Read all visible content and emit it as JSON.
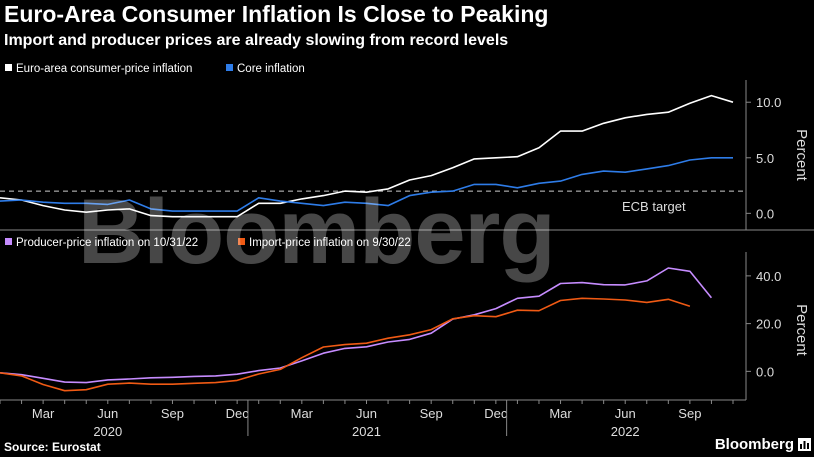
{
  "header": {
    "title": "Euro-Area Consumer Inflation Is Close to Peaking",
    "subtitle": "Import and producer prices are already slowing from record levels"
  },
  "watermark": "Bloomberg",
  "footer": {
    "source": "Source: Eurostat",
    "brand": "Bloomberg",
    "brand_icon": "bar-chart-logo-icon"
  },
  "colors": {
    "background": "#000000",
    "consumer": "#ffffff",
    "core": "#2e7ce8",
    "producer": "#c68cff",
    "import": "#f05a14",
    "grid": "#6a6a6a",
    "target_line": "#cccccc"
  },
  "chart_data": [
    {
      "type": "line",
      "ylabel": "Percent",
      "ylim": [
        -1.5,
        12
      ],
      "yticks": [
        0,
        5,
        10
      ],
      "ytick_labels": [
        "0.0",
        "5.0",
        "10.0"
      ],
      "grid": false,
      "legend_position": "top-left",
      "reference_line": {
        "value": 2,
        "label": "ECB target"
      },
      "x": [
        "2020-01",
        "2020-02",
        "2020-03",
        "2020-04",
        "2020-05",
        "2020-06",
        "2020-07",
        "2020-08",
        "2020-09",
        "2020-10",
        "2020-11",
        "2020-12",
        "2021-01",
        "2021-02",
        "2021-03",
        "2021-04",
        "2021-05",
        "2021-06",
        "2021-07",
        "2021-08",
        "2021-09",
        "2021-10",
        "2021-11",
        "2021-12",
        "2022-01",
        "2022-02",
        "2022-03",
        "2022-04",
        "2022-05",
        "2022-06",
        "2022-07",
        "2022-08",
        "2022-09",
        "2022-10",
        "2022-11"
      ],
      "series": [
        {
          "name": "Euro-area consumer-price inflation",
          "color": "#ffffff",
          "values": [
            1.4,
            1.2,
            0.7,
            0.3,
            0.1,
            0.3,
            0.4,
            -0.2,
            -0.3,
            -0.3,
            -0.3,
            -0.3,
            0.9,
            0.9,
            1.3,
            1.6,
            2.0,
            1.9,
            2.2,
            3.0,
            3.4,
            4.1,
            4.9,
            5.0,
            5.1,
            5.9,
            7.4,
            7.4,
            8.1,
            8.6,
            8.9,
            9.1,
            9.9,
            10.6,
            10.0
          ]
        },
        {
          "name": "Core inflation",
          "color": "#2e7ce8",
          "values": [
            1.1,
            1.2,
            1.0,
            0.9,
            0.9,
            0.8,
            1.2,
            0.4,
            0.2,
            0.2,
            0.2,
            0.2,
            1.4,
            1.1,
            0.9,
            0.7,
            1.0,
            0.9,
            0.7,
            1.6,
            1.9,
            2.0,
            2.6,
            2.6,
            2.3,
            2.7,
            2.9,
            3.5,
            3.8,
            3.7,
            4.0,
            4.3,
            4.8,
            5.0,
            5.0
          ]
        }
      ]
    },
    {
      "type": "line",
      "ylabel": "Percent",
      "ylim": [
        -12,
        50
      ],
      "yticks": [
        0,
        20,
        40
      ],
      "ytick_labels": [
        "0.0",
        "20.0",
        "40.0"
      ],
      "grid": false,
      "legend_position": "top-left",
      "x": [
        "2020-01",
        "2020-02",
        "2020-03",
        "2020-04",
        "2020-05",
        "2020-06",
        "2020-07",
        "2020-08",
        "2020-09",
        "2020-10",
        "2020-11",
        "2020-12",
        "2021-01",
        "2021-02",
        "2021-03",
        "2021-04",
        "2021-05",
        "2021-06",
        "2021-07",
        "2021-08",
        "2021-09",
        "2021-10",
        "2021-11",
        "2021-12",
        "2022-01",
        "2022-02",
        "2022-03",
        "2022-04",
        "2022-05",
        "2022-06",
        "2022-07",
        "2022-08",
        "2022-09",
        "2022-10",
        "2022-11"
      ],
      "series": [
        {
          "name": "Producer-price inflation on 10/31/22",
          "color": "#c68cff",
          "values": [
            -0.6,
            -1.4,
            -2.9,
            -4.5,
            -4.7,
            -3.6,
            -3.2,
            -2.7,
            -2.5,
            -2.1,
            -1.9,
            -1.2,
            0.3,
            1.4,
            4.4,
            7.6,
            9.6,
            10.3,
            12.3,
            13.4,
            16.0,
            21.9,
            23.7,
            26.3,
            30.6,
            31.5,
            36.8,
            37.2,
            36.3,
            36.2,
            37.9,
            43.3,
            41.9,
            30.8,
            null
          ]
        },
        {
          "name": "Import-price inflation on 9/30/22",
          "color": "#f05a14",
          "values": [
            -0.6,
            -1.9,
            -5.5,
            -8.1,
            -7.7,
            -5.4,
            -4.9,
            -5.4,
            -5.4,
            -5.0,
            -4.7,
            -3.8,
            -1.1,
            0.8,
            5.7,
            10.2,
            11.2,
            11.8,
            13.9,
            15.3,
            17.5,
            22.0,
            23.3,
            22.9,
            25.6,
            25.4,
            29.7,
            30.6,
            30.3,
            29.9,
            28.9,
            30.2,
            27.3,
            null,
            null
          ]
        }
      ]
    }
  ],
  "x_axis": {
    "month_labels": [
      {
        "month": "2020-03",
        "label": "Mar"
      },
      {
        "month": "2020-06",
        "label": "Jun"
      },
      {
        "month": "2020-09",
        "label": "Sep"
      },
      {
        "month": "2020-12",
        "label": "Dec"
      },
      {
        "month": "2021-03",
        "label": "Mar"
      },
      {
        "month": "2021-06",
        "label": "Jun"
      },
      {
        "month": "2021-09",
        "label": "Sep"
      },
      {
        "month": "2021-12",
        "label": "Dec"
      },
      {
        "month": "2022-03",
        "label": "Mar"
      },
      {
        "month": "2022-06",
        "label": "Jun"
      },
      {
        "month": "2022-09",
        "label": "Sep"
      }
    ],
    "year_labels": [
      {
        "month": "2020-06",
        "label": "2020"
      },
      {
        "month": "2021-06",
        "label": "2021"
      },
      {
        "month": "2022-06",
        "label": "2022"
      }
    ]
  }
}
